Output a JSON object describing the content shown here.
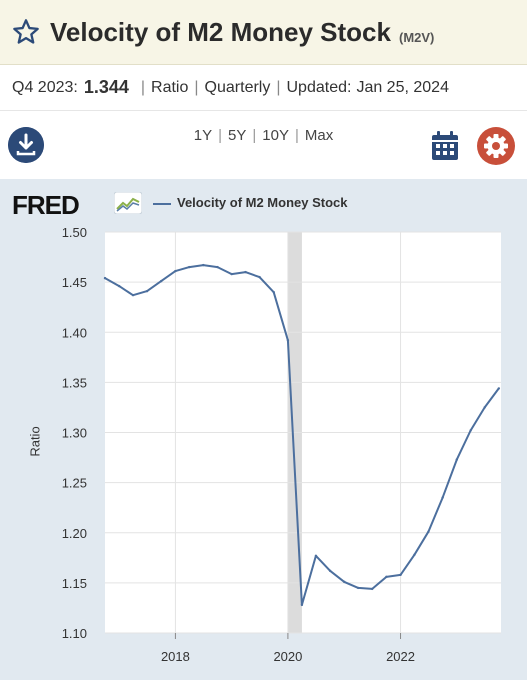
{
  "header": {
    "title": "Velocity of M2 Money Stock",
    "code": "(M2V)"
  },
  "summary": {
    "period": "Q4 2023:",
    "value": "1.344",
    "units": "Ratio",
    "frequency": "Quarterly",
    "updated_label": "Updated:",
    "updated_date": "Jan 25, 2024"
  },
  "toolbar": {
    "ranges": [
      "1Y",
      "5Y",
      "10Y",
      "Max"
    ]
  },
  "chart_panel": {
    "logo_text": "FRED",
    "legend_label": "Velocity of M2 Money Stock"
  },
  "colors": {
    "line": "#4c6f9e",
    "accent_blue": "#2c4a78",
    "gear": "#c84f3a",
    "header_bg": "#f7f5e6",
    "panel_bg": "#e1e9f0"
  },
  "chart_data": {
    "type": "line",
    "title": "",
    "ylabel": "Ratio",
    "xlabel": "",
    "ylim": [
      1.1,
      1.5
    ],
    "yticks": [
      "1.50",
      "1.45",
      "1.40",
      "1.35",
      "1.30",
      "1.25",
      "1.20",
      "1.15",
      "1.10"
    ],
    "xticks": [
      "2018",
      "2020",
      "2022"
    ],
    "recession_band": [
      "2020-01",
      "2020-04"
    ],
    "series": [
      {
        "name": "Velocity of M2 Money Stock",
        "x": [
          "2016-10-01",
          "2017-01-01",
          "2017-04-01",
          "2017-07-01",
          "2017-10-01",
          "2018-01-01",
          "2018-04-01",
          "2018-07-01",
          "2018-10-01",
          "2019-01-01",
          "2019-04-01",
          "2019-07-01",
          "2019-10-01",
          "2020-01-01",
          "2020-04-01",
          "2020-07-01",
          "2020-10-01",
          "2021-01-01",
          "2021-04-01",
          "2021-07-01",
          "2021-10-01",
          "2022-01-01",
          "2022-04-01",
          "2022-07-01",
          "2022-10-01",
          "2023-01-01",
          "2023-04-01",
          "2023-07-01",
          "2023-10-01"
        ],
        "values": [
          1.454,
          1.446,
          1.437,
          1.441,
          1.451,
          1.461,
          1.465,
          1.467,
          1.465,
          1.458,
          1.46,
          1.455,
          1.44,
          1.392,
          1.128,
          1.177,
          1.162,
          1.151,
          1.145,
          1.144,
          1.156,
          1.158,
          1.178,
          1.201,
          1.235,
          1.273,
          1.302,
          1.325,
          1.344
        ]
      }
    ]
  }
}
